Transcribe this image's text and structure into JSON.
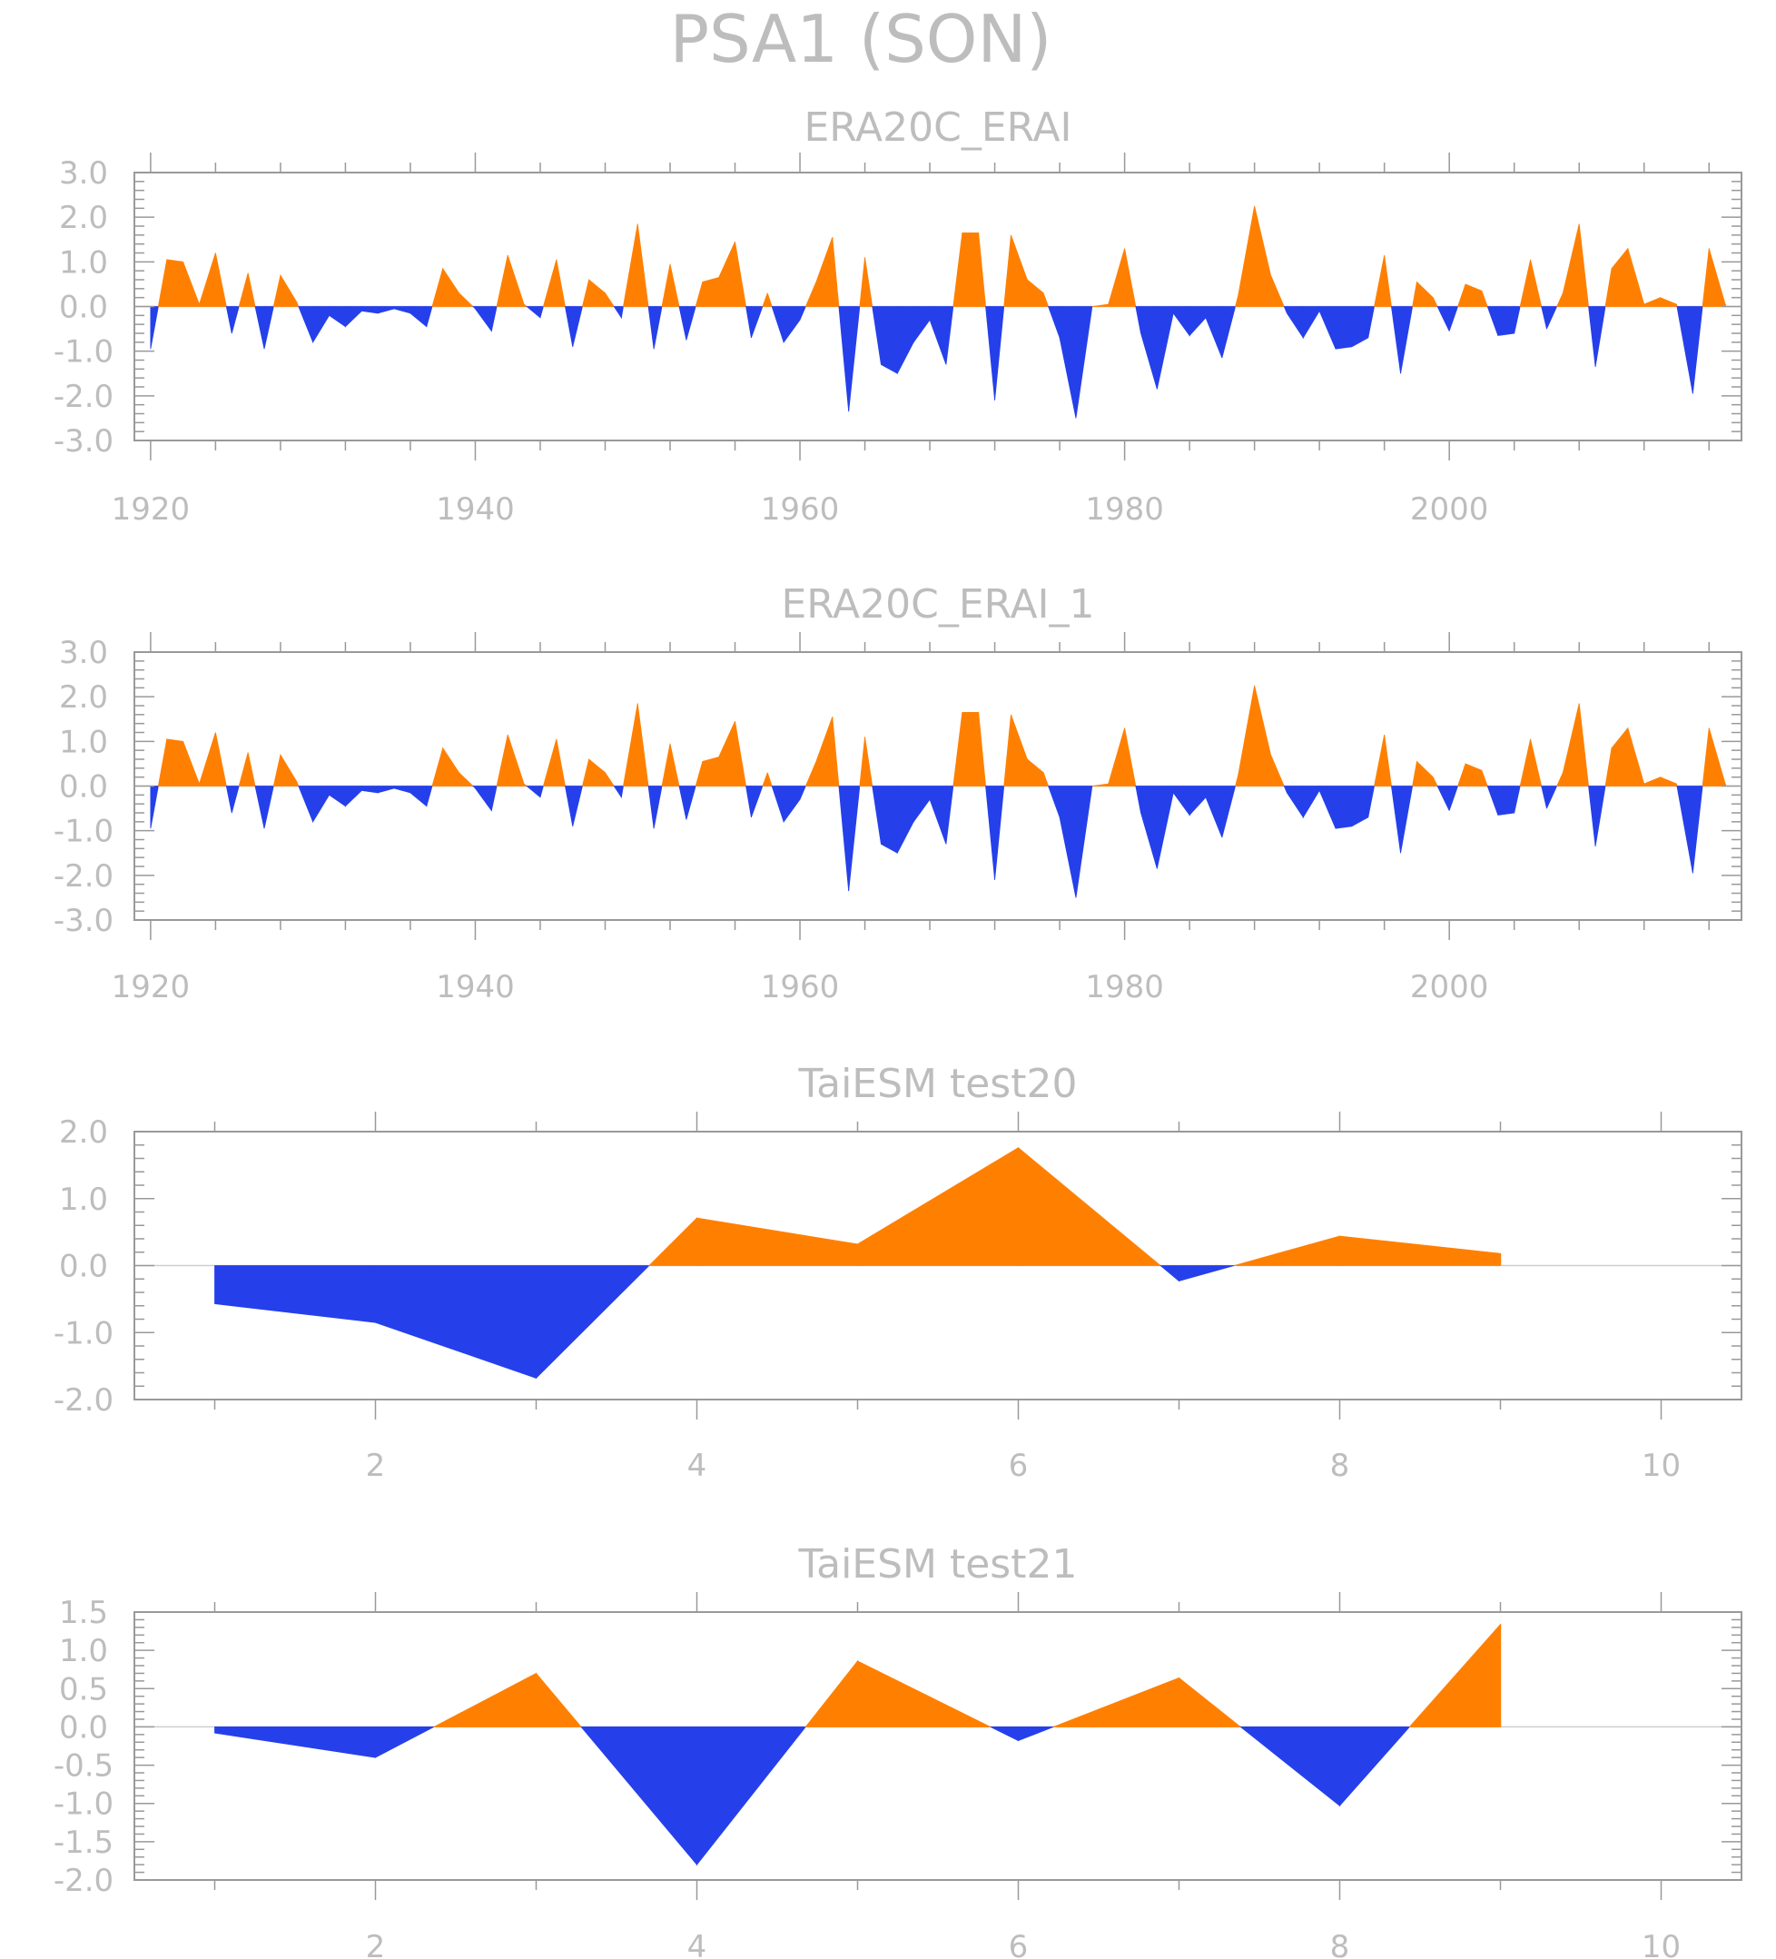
{
  "figure": {
    "title": "PSA1 (SON)"
  },
  "colors": {
    "positive": "#ff8000",
    "negative": "#2540ea",
    "axis": "#999999",
    "text": "#bdbdbd"
  },
  "chart_data": [
    {
      "type": "area",
      "title": "ERA20C_ERAI",
      "xlim": [
        1919,
        2018
      ],
      "ylim": [
        -3,
        3
      ],
      "yticks": [
        3,
        2,
        1,
        0,
        -1,
        -2,
        -3
      ],
      "ytick_labels": [
        "3.0",
        "2.0",
        "1.0",
        "0.0",
        "-1.0",
        "-2.0",
        "-3.0"
      ],
      "xticks": [
        1920,
        1940,
        1960,
        1980,
        2000
      ],
      "xtick_labels": [
        "1920",
        "1940",
        "1960",
        "1980",
        "2000"
      ],
      "x_start": 1920,
      "x_step": 1,
      "values": [
        -0.95,
        1.05,
        1.0,
        0.05,
        1.2,
        -0.6,
        0.75,
        -0.95,
        0.7,
        0.1,
        -0.8,
        -0.2,
        -0.45,
        -0.1,
        -0.15,
        -0.05,
        -0.15,
        -0.45,
        0.85,
        0.3,
        -0.05,
        -0.55,
        1.15,
        0.05,
        -0.25,
        1.05,
        -0.9,
        0.6,
        0.3,
        -0.25,
        1.85,
        -0.95,
        0.95,
        -0.75,
        0.55,
        0.65,
        1.45,
        -0.7,
        0.3,
        -0.8,
        -0.3,
        0.55,
        1.55,
        -2.35,
        1.1,
        -1.3,
        -1.5,
        -0.8,
        -0.3,
        -1.3,
        1.65,
        1.65,
        -2.1,
        1.6,
        0.6,
        0.3,
        -0.7,
        -2.5,
        0.0,
        0.05,
        1.3,
        -0.6,
        -1.85,
        -0.15,
        -0.65,
        -0.25,
        -1.15,
        0.25,
        2.25,
        0.7,
        -0.15,
        -0.7,
        -0.1,
        -0.95,
        -0.9,
        -0.7,
        1.15,
        -1.5,
        0.55,
        0.2,
        -0.55,
        0.5,
        0.35,
        -0.65,
        -0.6,
        1.05,
        -0.5,
        0.3,
        1.85,
        -1.35,
        0.85,
        1.3,
        0.05,
        0.2,
        0.05,
        -1.95,
        1.3,
        0.05
      ]
    },
    {
      "type": "area",
      "title": "ERA20C_ERAI_1",
      "xlim": [
        1919,
        2018
      ],
      "ylim": [
        -3,
        3
      ],
      "yticks": [
        3,
        2,
        1,
        0,
        -1,
        -2,
        -3
      ],
      "ytick_labels": [
        "3.0",
        "2.0",
        "1.0",
        "0.0",
        "-1.0",
        "-2.0",
        "-3.0"
      ],
      "xticks": [
        1920,
        1940,
        1960,
        1980,
        2000
      ],
      "xtick_labels": [
        "1920",
        "1940",
        "1960",
        "1980",
        "2000"
      ],
      "x_start": 1920,
      "x_step": 1,
      "values": [
        -0.95,
        1.05,
        1.0,
        0.05,
        1.2,
        -0.6,
        0.75,
        -0.95,
        0.7,
        0.1,
        -0.8,
        -0.2,
        -0.45,
        -0.1,
        -0.15,
        -0.05,
        -0.15,
        -0.45,
        0.85,
        0.3,
        -0.05,
        -0.55,
        1.15,
        0.05,
        -0.25,
        1.05,
        -0.9,
        0.6,
        0.3,
        -0.25,
        1.85,
        -0.95,
        0.95,
        -0.75,
        0.55,
        0.65,
        1.45,
        -0.7,
        0.3,
        -0.8,
        -0.3,
        0.55,
        1.55,
        -2.35,
        1.1,
        -1.3,
        -1.5,
        -0.8,
        -0.3,
        -1.3,
        1.65,
        1.65,
        -2.1,
        1.6,
        0.6,
        0.3,
        -0.7,
        -2.5,
        0.0,
        0.05,
        1.3,
        -0.6,
        -1.85,
        -0.15,
        -0.65,
        -0.25,
        -1.15,
        0.25,
        2.25,
        0.7,
        -0.15,
        -0.7,
        -0.1,
        -0.95,
        -0.9,
        -0.7,
        1.15,
        -1.5,
        0.55,
        0.2,
        -0.55,
        0.5,
        0.35,
        -0.65,
        -0.6,
        1.05,
        -0.5,
        0.3,
        1.85,
        -1.35,
        0.85,
        1.3,
        0.05,
        0.2,
        0.05,
        -1.95,
        1.3,
        0.05
      ]
    },
    {
      "type": "area",
      "title": "TaiESM test20",
      "xlim": [
        0.5,
        10.5
      ],
      "ylim": [
        -2,
        2
      ],
      "yticks": [
        2,
        1,
        0,
        -1,
        -2
      ],
      "ytick_labels": [
        "2.0",
        "1.0",
        "0.0",
        "-1.0",
        "-2.0"
      ],
      "xticks": [
        2,
        4,
        6,
        8,
        10
      ],
      "xtick_labels": [
        "2",
        "4",
        "6",
        "8",
        "10"
      ],
      "x_start": 1,
      "x_step": 1,
      "values": [
        -0.57,
        -0.85,
        -1.68,
        0.71,
        0.32,
        1.76,
        -0.23,
        0.44,
        0.18
      ]
    },
    {
      "type": "area",
      "title": "TaiESM test21",
      "xlim": [
        0.5,
        10.5
      ],
      "ylim": [
        -2,
        1.5
      ],
      "yticks": [
        1.5,
        1,
        0.5,
        0,
        -0.5,
        -1,
        -1.5,
        -2
      ],
      "ytick_labels": [
        "1.5",
        "1.0",
        "0.5",
        "0.0",
        "-0.5",
        "-1.0",
        "-1.5",
        "-2.0"
      ],
      "xticks": [
        2,
        4,
        6,
        8,
        10
      ],
      "xtick_labels": [
        "2",
        "4",
        "6",
        "8",
        "10"
      ],
      "x_start": 1,
      "x_step": 1,
      "values": [
        -0.08,
        -0.4,
        0.7,
        -1.8,
        0.86,
        -0.18,
        0.64,
        -1.03,
        1.34
      ]
    }
  ]
}
